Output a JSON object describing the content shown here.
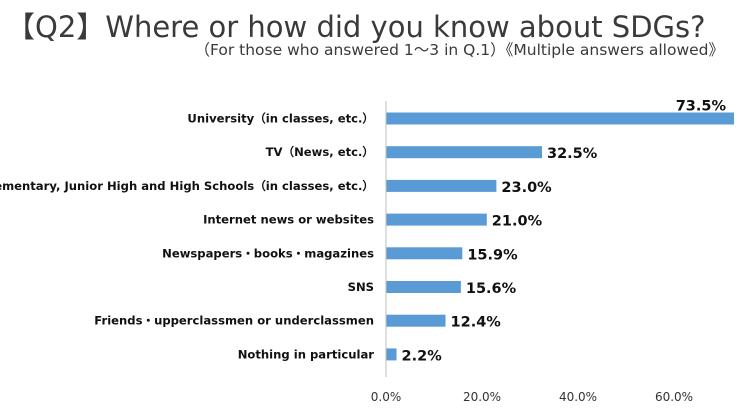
{
  "header": {
    "title": "【Q2】Where or how did you know about SDGs?",
    "subtitle": "（For those who answered 1〜3 in Q.1）《Multiple answers allowed》"
  },
  "colors": {
    "bar": "#5b9bd5",
    "axis": "#bfbfbf"
  },
  "chart_data": {
    "type": "bar",
    "orientation": "horizontal",
    "title": "【Q2】Where or how did you know about SDGs?",
    "subtitle": "（For those who answered 1〜3 in Q.1）《Multiple answers allowed》",
    "categories": [
      "University（in classes, etc.）",
      "TV（News, etc.）",
      "Elementary, Junior High and High Schools（in classes, etc.）",
      "Internet news or websites",
      "Newspapers・books・magazines",
      "SNS",
      "Friends・upperclassmen or underclassmen",
      "Nothing in particular"
    ],
    "values": [
      73.5,
      32.5,
      23.0,
      21.0,
      15.9,
      15.6,
      12.4,
      2.2
    ],
    "value_labels": [
      "73.5%",
      "32.5%",
      "23.0%",
      "21.0%",
      "15.9%",
      "15.6%",
      "12.4%",
      "2.2%"
    ],
    "xlim": [
      0,
      80
    ],
    "x_ticks": [
      0,
      20,
      40,
      60
    ],
    "x_tick_labels": [
      "0.0%",
      "20.0%",
      "40.0%",
      "60.0%"
    ],
    "grid": false,
    "legend": "none"
  }
}
